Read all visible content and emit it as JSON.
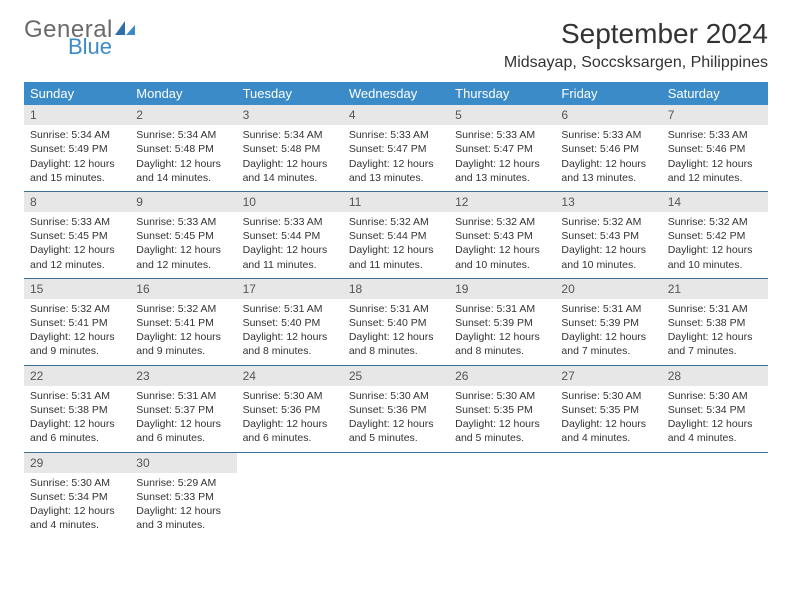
{
  "logo": {
    "general": "General",
    "blue": "Blue"
  },
  "title": "September 2024",
  "subtitle": "Midsayap, Soccsksargen, Philippines",
  "colors": {
    "header_bg": "#3b8bc9",
    "header_text": "#ffffff",
    "daynum_bg": "#e7e7e7",
    "daynum_text": "#555555",
    "row_border": "#3b6f94",
    "body_text": "#333333",
    "logo_gray": "#6a6a6a",
    "logo_blue": "#3b8bc9",
    "background": "#ffffff"
  },
  "fonts": {
    "family": "Arial",
    "title_size": 28,
    "subtitle_size": 16,
    "header_size": 13,
    "daynum_size": 12,
    "cell_size": 10.5
  },
  "weekdays": [
    "Sunday",
    "Monday",
    "Tuesday",
    "Wednesday",
    "Thursday",
    "Friday",
    "Saturday"
  ],
  "weeks": [
    [
      {
        "day": "1",
        "sunrise": "Sunrise: 5:34 AM",
        "sunset": "Sunset: 5:49 PM",
        "daylight1": "Daylight: 12 hours",
        "daylight2": "and 15 minutes."
      },
      {
        "day": "2",
        "sunrise": "Sunrise: 5:34 AM",
        "sunset": "Sunset: 5:48 PM",
        "daylight1": "Daylight: 12 hours",
        "daylight2": "and 14 minutes."
      },
      {
        "day": "3",
        "sunrise": "Sunrise: 5:34 AM",
        "sunset": "Sunset: 5:48 PM",
        "daylight1": "Daylight: 12 hours",
        "daylight2": "and 14 minutes."
      },
      {
        "day": "4",
        "sunrise": "Sunrise: 5:33 AM",
        "sunset": "Sunset: 5:47 PM",
        "daylight1": "Daylight: 12 hours",
        "daylight2": "and 13 minutes."
      },
      {
        "day": "5",
        "sunrise": "Sunrise: 5:33 AM",
        "sunset": "Sunset: 5:47 PM",
        "daylight1": "Daylight: 12 hours",
        "daylight2": "and 13 minutes."
      },
      {
        "day": "6",
        "sunrise": "Sunrise: 5:33 AM",
        "sunset": "Sunset: 5:46 PM",
        "daylight1": "Daylight: 12 hours",
        "daylight2": "and 13 minutes."
      },
      {
        "day": "7",
        "sunrise": "Sunrise: 5:33 AM",
        "sunset": "Sunset: 5:46 PM",
        "daylight1": "Daylight: 12 hours",
        "daylight2": "and 12 minutes."
      }
    ],
    [
      {
        "day": "8",
        "sunrise": "Sunrise: 5:33 AM",
        "sunset": "Sunset: 5:45 PM",
        "daylight1": "Daylight: 12 hours",
        "daylight2": "and 12 minutes."
      },
      {
        "day": "9",
        "sunrise": "Sunrise: 5:33 AM",
        "sunset": "Sunset: 5:45 PM",
        "daylight1": "Daylight: 12 hours",
        "daylight2": "and 12 minutes."
      },
      {
        "day": "10",
        "sunrise": "Sunrise: 5:33 AM",
        "sunset": "Sunset: 5:44 PM",
        "daylight1": "Daylight: 12 hours",
        "daylight2": "and 11 minutes."
      },
      {
        "day": "11",
        "sunrise": "Sunrise: 5:32 AM",
        "sunset": "Sunset: 5:44 PM",
        "daylight1": "Daylight: 12 hours",
        "daylight2": "and 11 minutes."
      },
      {
        "day": "12",
        "sunrise": "Sunrise: 5:32 AM",
        "sunset": "Sunset: 5:43 PM",
        "daylight1": "Daylight: 12 hours",
        "daylight2": "and 10 minutes."
      },
      {
        "day": "13",
        "sunrise": "Sunrise: 5:32 AM",
        "sunset": "Sunset: 5:43 PM",
        "daylight1": "Daylight: 12 hours",
        "daylight2": "and 10 minutes."
      },
      {
        "day": "14",
        "sunrise": "Sunrise: 5:32 AM",
        "sunset": "Sunset: 5:42 PM",
        "daylight1": "Daylight: 12 hours",
        "daylight2": "and 10 minutes."
      }
    ],
    [
      {
        "day": "15",
        "sunrise": "Sunrise: 5:32 AM",
        "sunset": "Sunset: 5:41 PM",
        "daylight1": "Daylight: 12 hours",
        "daylight2": "and 9 minutes."
      },
      {
        "day": "16",
        "sunrise": "Sunrise: 5:32 AM",
        "sunset": "Sunset: 5:41 PM",
        "daylight1": "Daylight: 12 hours",
        "daylight2": "and 9 minutes."
      },
      {
        "day": "17",
        "sunrise": "Sunrise: 5:31 AM",
        "sunset": "Sunset: 5:40 PM",
        "daylight1": "Daylight: 12 hours",
        "daylight2": "and 8 minutes."
      },
      {
        "day": "18",
        "sunrise": "Sunrise: 5:31 AM",
        "sunset": "Sunset: 5:40 PM",
        "daylight1": "Daylight: 12 hours",
        "daylight2": "and 8 minutes."
      },
      {
        "day": "19",
        "sunrise": "Sunrise: 5:31 AM",
        "sunset": "Sunset: 5:39 PM",
        "daylight1": "Daylight: 12 hours",
        "daylight2": "and 8 minutes."
      },
      {
        "day": "20",
        "sunrise": "Sunrise: 5:31 AM",
        "sunset": "Sunset: 5:39 PM",
        "daylight1": "Daylight: 12 hours",
        "daylight2": "and 7 minutes."
      },
      {
        "day": "21",
        "sunrise": "Sunrise: 5:31 AM",
        "sunset": "Sunset: 5:38 PM",
        "daylight1": "Daylight: 12 hours",
        "daylight2": "and 7 minutes."
      }
    ],
    [
      {
        "day": "22",
        "sunrise": "Sunrise: 5:31 AM",
        "sunset": "Sunset: 5:38 PM",
        "daylight1": "Daylight: 12 hours",
        "daylight2": "and 6 minutes."
      },
      {
        "day": "23",
        "sunrise": "Sunrise: 5:31 AM",
        "sunset": "Sunset: 5:37 PM",
        "daylight1": "Daylight: 12 hours",
        "daylight2": "and 6 minutes."
      },
      {
        "day": "24",
        "sunrise": "Sunrise: 5:30 AM",
        "sunset": "Sunset: 5:36 PM",
        "daylight1": "Daylight: 12 hours",
        "daylight2": "and 6 minutes."
      },
      {
        "day": "25",
        "sunrise": "Sunrise: 5:30 AM",
        "sunset": "Sunset: 5:36 PM",
        "daylight1": "Daylight: 12 hours",
        "daylight2": "and 5 minutes."
      },
      {
        "day": "26",
        "sunrise": "Sunrise: 5:30 AM",
        "sunset": "Sunset: 5:35 PM",
        "daylight1": "Daylight: 12 hours",
        "daylight2": "and 5 minutes."
      },
      {
        "day": "27",
        "sunrise": "Sunrise: 5:30 AM",
        "sunset": "Sunset: 5:35 PM",
        "daylight1": "Daylight: 12 hours",
        "daylight2": "and 4 minutes."
      },
      {
        "day": "28",
        "sunrise": "Sunrise: 5:30 AM",
        "sunset": "Sunset: 5:34 PM",
        "daylight1": "Daylight: 12 hours",
        "daylight2": "and 4 minutes."
      }
    ],
    [
      {
        "day": "29",
        "sunrise": "Sunrise: 5:30 AM",
        "sunset": "Sunset: 5:34 PM",
        "daylight1": "Daylight: 12 hours",
        "daylight2": "and 4 minutes."
      },
      {
        "day": "30",
        "sunrise": "Sunrise: 5:29 AM",
        "sunset": "Sunset: 5:33 PM",
        "daylight1": "Daylight: 12 hours",
        "daylight2": "and 3 minutes."
      },
      null,
      null,
      null,
      null,
      null
    ]
  ]
}
